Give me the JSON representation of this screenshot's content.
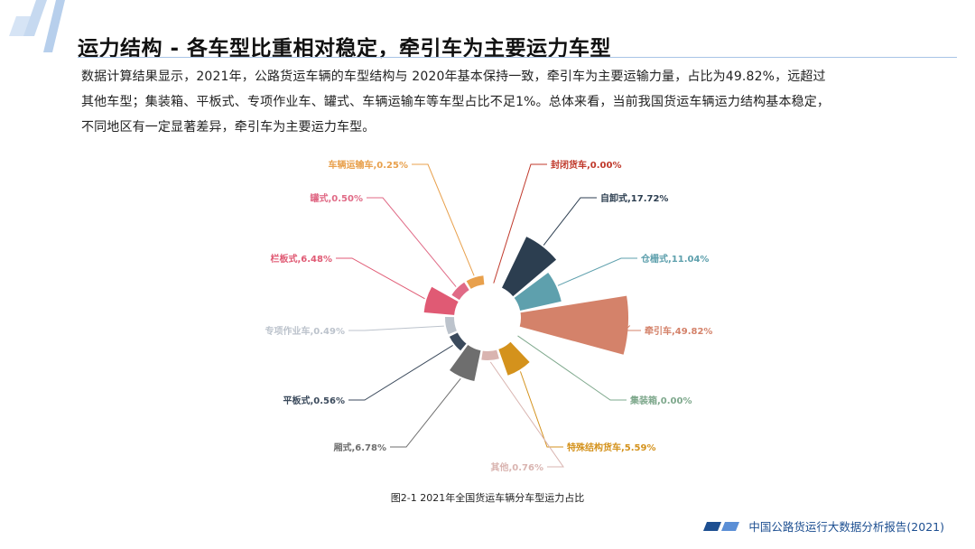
{
  "header": {
    "title": "运力结构 - 各车型比重相对稳定，牵引车为主要运力车型"
  },
  "body": {
    "lines": [
      "数据计算结果显示，2021年，公路货运车辆的车型结构与 2020年基本保持一致，牵引车为主要运输力量，占比为49.82%，远超过",
      "其他车型；集装箱、平板式、专项作业车、罐式、车辆运输车等车型占比不足1%。总体来看，当前我国货运车辆运力结构基本稳定，",
      "不同地区有一定显著差异，牵引车为主要运力车型。"
    ]
  },
  "chart_data": {
    "type": "pie",
    "variant": "nightingale-rose",
    "slices": [
      {
        "label": "封闭货车,0.00%",
        "value": 0.0,
        "color": "#c0392b"
      },
      {
        "label": "自卸式,17.72%",
        "value": 17.72,
        "color": "#2c3e50"
      },
      {
        "label": "仓栅式,11.04%",
        "value": 11.04,
        "color": "#5ea0ad"
      },
      {
        "label": "牵引车,49.82%",
        "value": 49.82,
        "color": "#d4826a"
      },
      {
        "label": "集装箱,0.00%",
        "value": 0.0,
        "color": "#7ea88c"
      },
      {
        "label": "特殊结构货车,5.59%",
        "value": 5.59,
        "color": "#d4921c"
      },
      {
        "label": "其他,0.76%",
        "value": 0.76,
        "color": "#d9b4b0"
      },
      {
        "label": "厢式,6.78%",
        "value": 6.78,
        "color": "#6e6e6e"
      },
      {
        "label": "平板式,0.56%",
        "value": 0.56,
        "color": "#3b4a5c"
      },
      {
        "label": "专项作业车,0.49%",
        "value": 0.49,
        "color": "#bcc3cc"
      },
      {
        "label": "栏板式,6.48%",
        "value": 6.48,
        "color": "#e05a74"
      },
      {
        "label": "罐式,0.50%",
        "value": 0.5,
        "color": "#e06a86"
      },
      {
        "label": "车辆运输车,0.25%",
        "value": 0.25,
        "color": "#e8a04c"
      }
    ],
    "caption": "图2-1 2021年全国货运车辆分车型运力占比"
  },
  "footer": {
    "text": "中国公路货运行大数据分析报告(2021)",
    "accent_colors": [
      "#1d4f91",
      "#5b8fd6"
    ]
  }
}
